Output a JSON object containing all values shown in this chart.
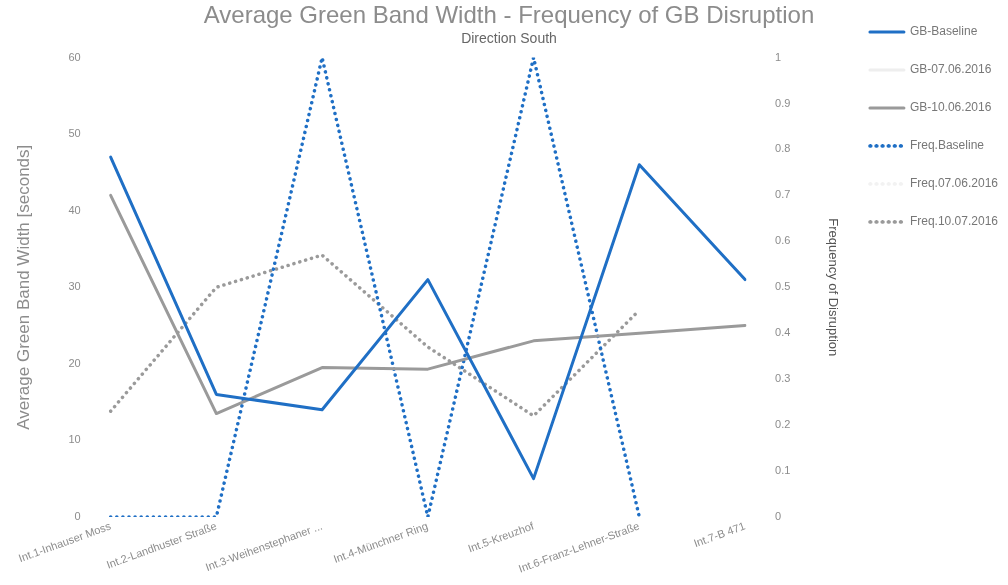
{
  "chart_data": {
    "type": "line",
    "title": "Average Green Band Width - Frequency of GB Disruption",
    "subtitle": "Direction South",
    "ylabel": "Average Green Band Width [seconds]",
    "y2label": "Frequency of Disruption",
    "categories": [
      "Int.1-Inhauser Moss",
      "Int.2-Landhuster Straße",
      "Int.3-Weihenstephaner ...",
      "Int.4-Münchner Ring",
      "Int.5-Kreuzhof",
      "Int.6-Franz-Lehner-Straße",
      "Int.7-B 471"
    ],
    "series": [
      {
        "name": "GB-Baseline",
        "color": "#1f6fc5",
        "line_style": "solid",
        "values": [
          47,
          16,
          14,
          31,
          5,
          46,
          31
        ]
      },
      {
        "name": "GB-07.06.2016",
        "color": "#eeeeee",
        "line_style": "solid",
        "values": [
          null,
          null,
          null,
          null,
          null,
          null,
          null
        ]
      },
      {
        "name": "GB-10.06.2016",
        "color": "#9a9a9a",
        "line_style": "solid",
        "values": [
          42,
          13.5,
          19.5,
          19.3,
          23,
          24,
          25
        ]
      },
      {
        "name": "Freq.Baseline",
        "color": "#1f6fc5",
        "line_style": "dotted",
        "axis": "y2",
        "values": [
          0,
          0,
          1,
          0,
          1,
          0,
          null
        ]
      },
      {
        "name": "Freq.07.06.2016",
        "color": "#f2f2f2",
        "line_style": "dotted",
        "axis": "y2",
        "values": [
          null,
          null,
          null,
          null,
          null,
          null,
          null
        ]
      },
      {
        "name": "Freq.10.07.2016",
        "color": "#9a9a9a",
        "line_style": "dotted",
        "axis": "y2",
        "values": [
          0.23,
          0.5,
          0.57,
          0.37,
          0.22,
          0.45,
          null
        ]
      }
    ],
    "ylim": [
      0,
      60
    ],
    "yticks": [
      0,
      10,
      20,
      30,
      40,
      50,
      60
    ],
    "y2lim": [
      0,
      1
    ],
    "y2ticks": [
      0,
      0.1,
      0.2,
      0.3,
      0.4,
      0.5,
      0.6,
      0.7,
      0.8,
      0.9,
      1
    ],
    "grid": false,
    "legend": "right",
    "marker": "none"
  }
}
